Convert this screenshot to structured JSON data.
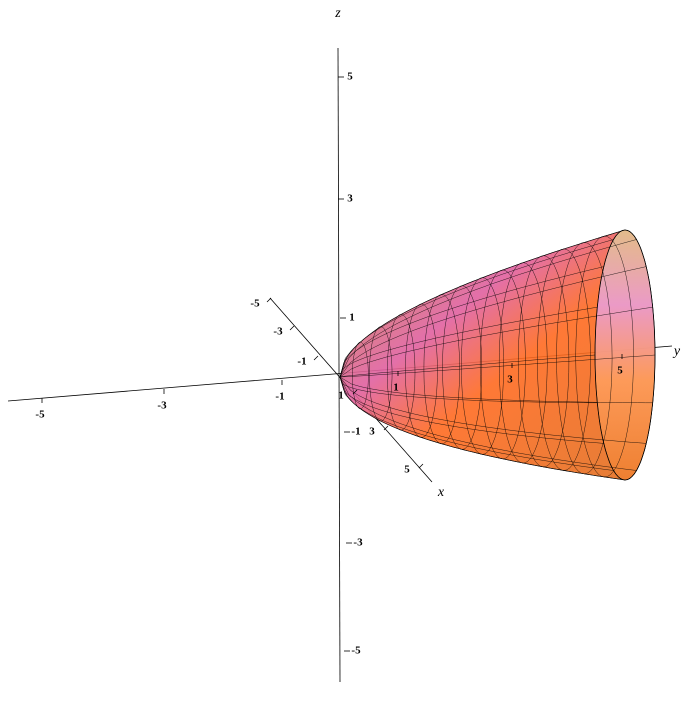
{
  "axes": {
    "x": {
      "label": "x",
      "ticks": [
        -5,
        -3,
        -1,
        1,
        3,
        5
      ]
    },
    "y": {
      "label": "y",
      "ticks": [
        -5,
        -3,
        -1,
        1,
        3,
        5
      ]
    },
    "z": {
      "label": "z",
      "ticks": [
        5,
        3,
        1,
        -1,
        -3,
        -5
      ]
    }
  }
}
